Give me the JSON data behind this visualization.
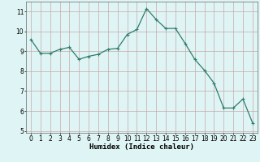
{
  "x": [
    0,
    1,
    2,
    3,
    4,
    5,
    6,
    7,
    8,
    9,
    10,
    11,
    12,
    13,
    14,
    15,
    16,
    17,
    18,
    19,
    20,
    21,
    22,
    23
  ],
  "y": [
    9.6,
    8.9,
    8.9,
    9.1,
    9.2,
    8.6,
    8.75,
    8.85,
    9.1,
    9.15,
    9.85,
    10.1,
    11.15,
    10.6,
    10.15,
    10.15,
    9.4,
    8.6,
    8.05,
    7.4,
    6.15,
    6.15,
    6.6,
    5.4
  ],
  "line_color": "#2e7d6e",
  "marker": "+",
  "markersize": 3.5,
  "linewidth": 0.9,
  "bg_color": "#dff4f4",
  "grid_color_x": "#c8a8a8",
  "grid_color_y": "#c8a8a8",
  "xlabel": "Humidex (Indice chaleur)",
  "xlim": [
    -0.5,
    23.5
  ],
  "ylim": [
    4.9,
    11.5
  ],
  "yticks": [
    5,
    6,
    7,
    8,
    9,
    10,
    11
  ],
  "xticks": [
    0,
    1,
    2,
    3,
    4,
    5,
    6,
    7,
    8,
    9,
    10,
    11,
    12,
    13,
    14,
    15,
    16,
    17,
    18,
    19,
    20,
    21,
    22,
    23
  ],
  "tick_fontsize": 5.5,
  "xlabel_fontsize": 6.5,
  "xlabel_bold": true
}
